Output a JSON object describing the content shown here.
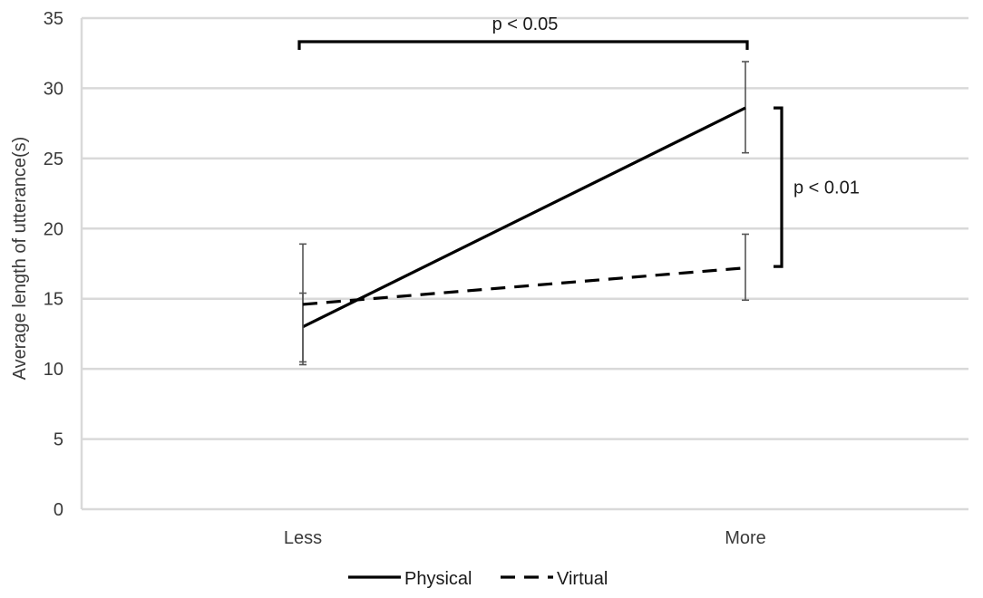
{
  "chart_data": {
    "type": "line",
    "title": "",
    "xlabel": "",
    "ylabel": "Average length of utterance(s)",
    "categories": [
      "Less",
      "More"
    ],
    "ylim": [
      0,
      35
    ],
    "yticks": [
      0,
      5,
      10,
      15,
      20,
      25,
      30,
      35
    ],
    "grid": true,
    "legend_position": "bottom",
    "series": [
      {
        "name": "Physical",
        "style": "solid",
        "color": "#000000",
        "values": [
          13.0,
          28.6
        ],
        "error_low": [
          10.3,
          25.4
        ],
        "error_high": [
          15.4,
          31.9
        ]
      },
      {
        "name": "Virtual",
        "style": "dashed",
        "color": "#000000",
        "values": [
          14.6,
          17.2
        ],
        "error_low": [
          10.5,
          14.9
        ],
        "error_high": [
          18.9,
          19.6
        ]
      }
    ],
    "annotations": [
      {
        "label": "p < 0.05",
        "kind": "bracket-horizontal",
        "from_category": "Less",
        "to_category": "More",
        "at_value": 33
      },
      {
        "label": "p < 0.01",
        "kind": "bracket-vertical",
        "at_category": "More",
        "from_value": 17.3,
        "to_value": 28.6
      }
    ]
  }
}
